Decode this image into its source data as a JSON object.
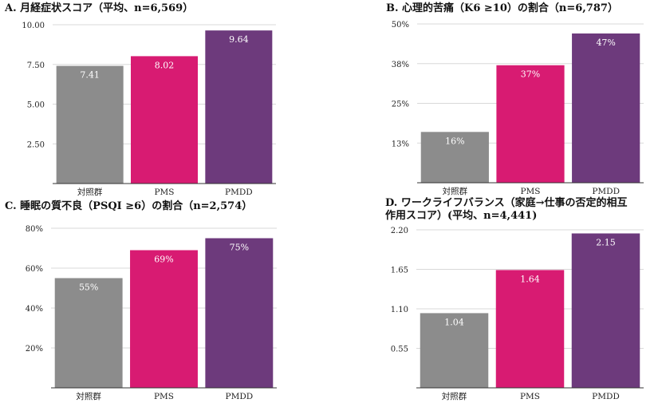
{
  "colors": {
    "control": "#8c8c8c",
    "pms": "#d81b72",
    "pmdd": "#6d3a7c",
    "grid": "#d9d9d9",
    "axis": "#333333"
  },
  "chart_data": [
    {
      "id": "A",
      "type": "bar",
      "title": "A. 月経症状スコア（平均、n=6,569）",
      "categories": [
        "対照群",
        "PMS",
        "PMDD"
      ],
      "values": [
        7.41,
        8.02,
        9.64
      ],
      "value_labels": [
        "7.41",
        "8.02",
        "9.64"
      ],
      "ylim": [
        0,
        10
      ],
      "yticks": [
        2.5,
        5,
        7.5,
        10
      ],
      "ytick_labels": [
        "2.50",
        "5.00",
        "7.50",
        "10.00"
      ],
      "grid": true
    },
    {
      "id": "B",
      "type": "bar",
      "title": "B. 心理的苦痛（K6 ≥10）の割合（n=6,787）",
      "categories": [
        "対照群",
        "PMS",
        "PMDD"
      ],
      "values": [
        16,
        37,
        47
      ],
      "value_labels": [
        "16%",
        "37%",
        "47%"
      ],
      "ylim": [
        0,
        50
      ],
      "yticks": [
        12.5,
        25,
        37.5,
        50
      ],
      "ytick_labels": [
        "13%",
        "25%",
        "38%",
        "50%"
      ],
      "grid": true
    },
    {
      "id": "C",
      "type": "bar",
      "title": "C. 睡眠の質不良（PSQI ≥6）の割合（n=2,574）",
      "categories": [
        "対照群",
        "PMS",
        "PMDD"
      ],
      "values": [
        55,
        69,
        75
      ],
      "value_labels": [
        "55%",
        "69%",
        "75%"
      ],
      "ylim": [
        0,
        80
      ],
      "yticks": [
        20,
        40,
        60,
        80
      ],
      "ytick_labels": [
        "20%",
        "40%",
        "60%",
        "80%"
      ],
      "grid": true
    },
    {
      "id": "D",
      "type": "bar",
      "title_lines": [
        "D. ワークライフバランス（家庭→仕事の否定的相互",
        "作用スコア）(平均、n=4,441)"
      ],
      "categories": [
        "対照群",
        "PMS",
        "PMDD"
      ],
      "values": [
        1.04,
        1.64,
        2.15
      ],
      "value_labels": [
        "1.04",
        "1.64",
        "2.15"
      ],
      "ylim": [
        0,
        2.2
      ],
      "yticks": [
        0.55,
        1.1,
        1.65,
        2.2
      ],
      "ytick_labels": [
        "0.55",
        "1.10",
        "1.65",
        "2.20"
      ],
      "grid": true
    }
  ]
}
